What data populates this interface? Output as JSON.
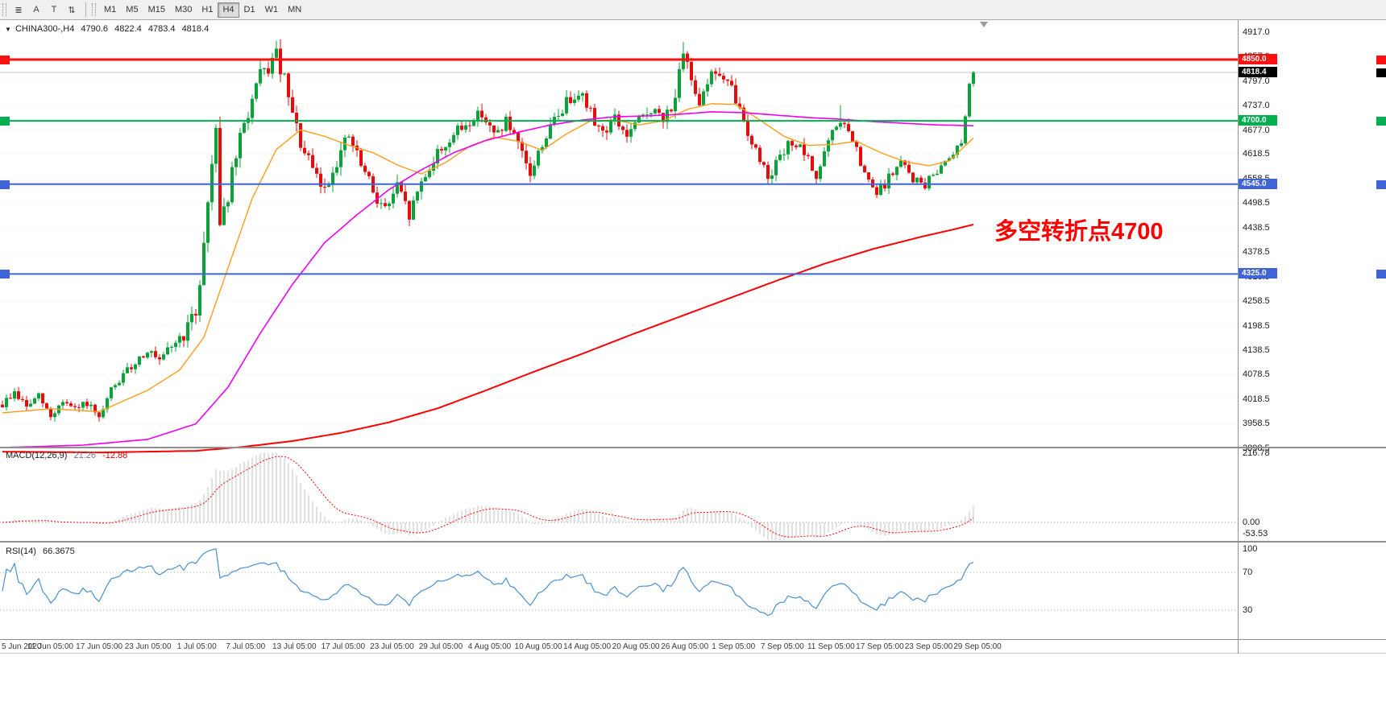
{
  "toolbar": {
    "icons": [
      {
        "name": "chart-list-icon",
        "glyph": "≣"
      },
      {
        "name": "cursor-tool-icon",
        "glyph": "A"
      },
      {
        "name": "text-tool-icon",
        "glyph": "T"
      },
      {
        "name": "scale-tool-icon",
        "glyph": "⇅"
      }
    ],
    "timeframes": [
      "M1",
      "M5",
      "M15",
      "M30",
      "H1",
      "H4",
      "D1",
      "W1",
      "MN"
    ],
    "selected_timeframe": "H4"
  },
  "header": {
    "marker": "▼",
    "symbol": "CHINA300-,H4",
    "open": "4790.6",
    "high": "4822.4",
    "low": "4783.4",
    "close": "4818.4"
  },
  "price_axis": {
    "ticks": [
      "4917.0",
      "4857.0",
      "4797.0",
      "4737.0",
      "4677.0",
      "4618.5",
      "4558.5",
      "4498.5",
      "4438.5",
      "4378.5",
      "4318.5",
      "4258.5",
      "4198.5",
      "4138.5",
      "4078.5",
      "4018.5",
      "3958.5",
      "3898.5"
    ]
  },
  "hlines": [
    {
      "label": "4850.0",
      "price": 4850.0,
      "color": "#ff1010",
      "thickness": 3
    },
    {
      "label": "4700.0",
      "price": 4700.0,
      "color": "#00b050",
      "thickness": 2
    },
    {
      "label": "4545.0",
      "price": 4545.0,
      "color": "#3e64d7",
      "thickness": 2
    },
    {
      "label": "4325.0",
      "price": 4325.0,
      "color": "#3e64d7",
      "thickness": 2
    }
  ],
  "bid": {
    "label": "4818.4",
    "price": 4818.4,
    "line_color": "#c8c8c8",
    "tag_bg": "#000000"
  },
  "annotation": {
    "text": "多空转折点4700",
    "color": "#ff0000"
  },
  "macd_panel": {
    "name": "MACD(12,26,9)",
    "main_value": "21.26",
    "signal_value": "-12.88",
    "ticks": [
      "216.78",
      "0.00",
      "-53.53"
    ],
    "max": 216.78
  },
  "rsi_panel": {
    "name": "RSI(14)",
    "value": "66.3675",
    "ticks": [
      {
        "label": "100",
        "value": 100
      },
      {
        "label": "70",
        "value": 70
      },
      {
        "label": "30",
        "value": 30
      }
    ]
  },
  "time_axis": {
    "labels": [
      "5 Jun 2020",
      "11 Jun 05:00",
      "17 Jun 05:00",
      "23 Jun 05:00",
      "1 Jul 05:00",
      "7 Jul 05:00",
      "13 Jul 05:00",
      "17 Jul 05:00",
      "23 Jul 05:00",
      "29 Jul 05:00",
      "4 Aug 05:00",
      "10 Aug 05:00",
      "14 Aug 05:00",
      "20 Aug 05:00",
      "26 Aug 05:00",
      "1 Sep 05:00",
      "7 Sep 05:00",
      "11 Sep 05:00",
      "17 Sep 05:00",
      "23 Sep 05:00",
      "29 Sep 05:00"
    ]
  },
  "chart_data": {
    "type": "candlestick",
    "symbol": "CHINA300-",
    "timeframe": "H4",
    "title": "CHINA300-,H4 4790.6 4822.4 4783.4 4818.4",
    "price_range": {
      "axis_top": 4917.0,
      "axis_bottom": 3898.5
    },
    "last": {
      "open": 4790.6,
      "high": 4822.4,
      "low": 4783.4,
      "close": 4818.4
    },
    "candles_count": 242,
    "colors": {
      "up": "#0aa339",
      "down": "#e60c0c",
      "ma_fast": "#ff9c1a",
      "ma_mid": "#ee00ee",
      "ma_slow": "#ff0000",
      "macd_hist": "#c3c3c3",
      "macd_signal": "#ff0000",
      "rsi": "#4a8fce",
      "grid": "#ededed"
    },
    "close_anchors": [
      [
        0,
        4005
      ],
      [
        3,
        4035
      ],
      [
        6,
        4000
      ],
      [
        9,
        4025
      ],
      [
        12,
        3975
      ],
      [
        15,
        4015
      ],
      [
        18,
        3990
      ],
      [
        21,
        4010
      ],
      [
        24,
        3965
      ],
      [
        27,
        4040
      ],
      [
        30,
        4075
      ],
      [
        33,
        4110
      ],
      [
        36,
        4140
      ],
      [
        39,
        4105
      ],
      [
        42,
        4150
      ],
      [
        45,
        4175
      ],
      [
        48,
        4230
      ],
      [
        50,
        4400
      ],
      [
        52,
        4600
      ],
      [
        53,
        4700
      ],
      [
        54,
        4455
      ],
      [
        56,
        4520
      ],
      [
        58,
        4610
      ],
      [
        60,
        4690
      ],
      [
        62,
        4750
      ],
      [
        64,
        4805
      ],
      [
        66,
        4830
      ],
      [
        68,
        4858
      ],
      [
        70,
        4795
      ],
      [
        72,
        4710
      ],
      [
        75,
        4615
      ],
      [
        78,
        4560
      ],
      [
        80,
        4530
      ],
      [
        83,
        4605
      ],
      [
        86,
        4662
      ],
      [
        89,
        4590
      ],
      [
        92,
        4528
      ],
      [
        95,
        4482
      ],
      [
        98,
        4538
      ],
      [
        101,
        4468
      ],
      [
        104,
        4552
      ],
      [
        108,
        4620
      ],
      [
        112,
        4665
      ],
      [
        116,
        4698
      ],
      [
        119,
        4722
      ],
      [
        122,
        4662
      ],
      [
        125,
        4700
      ],
      [
        128,
        4635
      ],
      [
        131,
        4568
      ],
      [
        134,
        4645
      ],
      [
        137,
        4700
      ],
      [
        140,
        4745
      ],
      [
        143,
        4778
      ],
      [
        146,
        4718
      ],
      [
        149,
        4672
      ],
      [
        152,
        4705
      ],
      [
        155,
        4662
      ],
      [
        158,
        4700
      ],
      [
        161,
        4730
      ],
      [
        164,
        4698
      ],
      [
        167,
        4762
      ],
      [
        169,
        4852
      ],
      [
        171,
        4806
      ],
      [
        173,
        4752
      ],
      [
        175,
        4800
      ],
      [
        177,
        4822
      ],
      [
        179,
        4798
      ],
      [
        181,
        4775
      ],
      [
        184,
        4700
      ],
      [
        187,
        4625
      ],
      [
        190,
        4568
      ],
      [
        193,
        4606
      ],
      [
        196,
        4652
      ],
      [
        199,
        4618
      ],
      [
        202,
        4563
      ],
      [
        205,
        4648
      ],
      [
        208,
        4702
      ],
      [
        211,
        4652
      ],
      [
        214,
        4565
      ],
      [
        217,
        4520
      ],
      [
        220,
        4560
      ],
      [
        223,
        4598
      ],
      [
        226,
        4558
      ],
      [
        229,
        4542
      ],
      [
        232,
        4580
      ],
      [
        235,
        4615
      ],
      [
        238,
        4648
      ],
      [
        240,
        4790.6
      ],
      [
        241,
        4818.4
      ]
    ],
    "vol_anchors": [
      [
        0,
        26
      ],
      [
        24,
        26
      ],
      [
        44,
        32
      ],
      [
        50,
        70
      ],
      [
        54,
        70
      ],
      [
        60,
        55
      ],
      [
        68,
        55
      ],
      [
        74,
        50
      ],
      [
        82,
        48
      ],
      [
        95,
        44
      ],
      [
        104,
        42
      ],
      [
        116,
        38
      ],
      [
        130,
        40
      ],
      [
        144,
        42
      ],
      [
        158,
        38
      ],
      [
        169,
        52
      ],
      [
        178,
        40
      ],
      [
        190,
        36
      ],
      [
        205,
        34
      ],
      [
        217,
        32
      ],
      [
        230,
        28
      ],
      [
        238,
        24
      ],
      [
        241,
        16
      ]
    ],
    "spikes": [
      {
        "i": 68,
        "high": 4884
      },
      {
        "i": 169,
        "high": 4893
      },
      {
        "i": 208,
        "high": 4738
      }
    ],
    "ma_fast_anchors": [
      [
        0,
        3985
      ],
      [
        12,
        3995
      ],
      [
        24,
        3988
      ],
      [
        36,
        4040
      ],
      [
        44,
        4090
      ],
      [
        50,
        4170
      ],
      [
        56,
        4340
      ],
      [
        62,
        4510
      ],
      [
        68,
        4630
      ],
      [
        74,
        4678
      ],
      [
        80,
        4662
      ],
      [
        86,
        4640
      ],
      [
        92,
        4622
      ],
      [
        98,
        4592
      ],
      [
        104,
        4570
      ],
      [
        110,
        4598
      ],
      [
        116,
        4638
      ],
      [
        122,
        4660
      ],
      [
        128,
        4650
      ],
      [
        134,
        4628
      ],
      [
        140,
        4668
      ],
      [
        146,
        4700
      ],
      [
        152,
        4702
      ],
      [
        158,
        4690
      ],
      [
        164,
        4700
      ],
      [
        170,
        4728
      ],
      [
        176,
        4742
      ],
      [
        182,
        4740
      ],
      [
        188,
        4702
      ],
      [
        194,
        4662
      ],
      [
        200,
        4640
      ],
      [
        206,
        4642
      ],
      [
        212,
        4650
      ],
      [
        218,
        4622
      ],
      [
        224,
        4600
      ],
      [
        230,
        4590
      ],
      [
        235,
        4602
      ],
      [
        241,
        4658
      ]
    ],
    "ma_mid_anchors": [
      [
        0,
        3900
      ],
      [
        20,
        3906
      ],
      [
        36,
        3920
      ],
      [
        48,
        3958
      ],
      [
        56,
        4048
      ],
      [
        64,
        4180
      ],
      [
        72,
        4300
      ],
      [
        80,
        4402
      ],
      [
        88,
        4470
      ],
      [
        96,
        4532
      ],
      [
        104,
        4580
      ],
      [
        112,
        4622
      ],
      [
        120,
        4652
      ],
      [
        128,
        4672
      ],
      [
        136,
        4690
      ],
      [
        144,
        4702
      ],
      [
        152,
        4710
      ],
      [
        160,
        4712
      ],
      [
        168,
        4716
      ],
      [
        176,
        4722
      ],
      [
        184,
        4720
      ],
      [
        192,
        4714
      ],
      [
        200,
        4708
      ],
      [
        208,
        4704
      ],
      [
        216,
        4698
      ],
      [
        224,
        4694
      ],
      [
        232,
        4690
      ],
      [
        241,
        4688
      ]
    ],
    "ma_slow_anchors": [
      [
        0,
        3890
      ],
      [
        24,
        3888
      ],
      [
        48,
        3892
      ],
      [
        60,
        3902
      ],
      [
        72,
        3916
      ],
      [
        84,
        3936
      ],
      [
        96,
        3962
      ],
      [
        108,
        3996
      ],
      [
        120,
        4040
      ],
      [
        132,
        4086
      ],
      [
        144,
        4130
      ],
      [
        156,
        4176
      ],
      [
        168,
        4220
      ],
      [
        180,
        4264
      ],
      [
        192,
        4308
      ],
      [
        204,
        4350
      ],
      [
        216,
        4386
      ],
      [
        228,
        4416
      ],
      [
        236,
        4434
      ],
      [
        241,
        4446
      ]
    ]
  }
}
